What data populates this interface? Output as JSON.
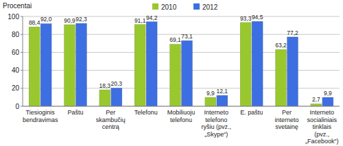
{
  "chart_data": {
    "type": "bar",
    "ylabel": "Procentai",
    "categories": [
      "Tiesioginis bendravimas",
      "Paštu",
      "Per skambučių centrą",
      "Telefonu",
      "Mobiliuoju telefonu",
      "Interneto telefono ryšiu (pvz., „Skype“)",
      "E. paštu",
      "Per interneto svetainę",
      "Interneto socialiniais tinklais (pvz., „Facebook“)"
    ],
    "series": [
      {
        "name": "2010",
        "color": "#99c82e",
        "values": [
          88.4,
          90.9,
          18.3,
          91.1,
          69.1,
          9.9,
          93.3,
          63.2,
          2.7
        ],
        "value_labels": [
          "88,4",
          "90,9",
          "18,3",
          "91,1",
          "69,1",
          "9,9",
          "93,3",
          "63,2",
          "2,7"
        ]
      },
      {
        "name": "2012",
        "color": "#3d6fe2",
        "values": [
          92.0,
          92.3,
          20.3,
          94.2,
          73.1,
          12.1,
          94.5,
          77.2,
          9.9
        ],
        "value_labels": [
          "92,0",
          "92,3",
          "20,3",
          "94,2",
          "73,1",
          "12,1",
          "94,5",
          "77,2",
          "9,9"
        ]
      }
    ],
    "ylim": [
      0,
      100
    ],
    "yticks": [
      0,
      20,
      40,
      60,
      80,
      100
    ],
    "grid": true,
    "legend": "top",
    "data_labels": true
  }
}
